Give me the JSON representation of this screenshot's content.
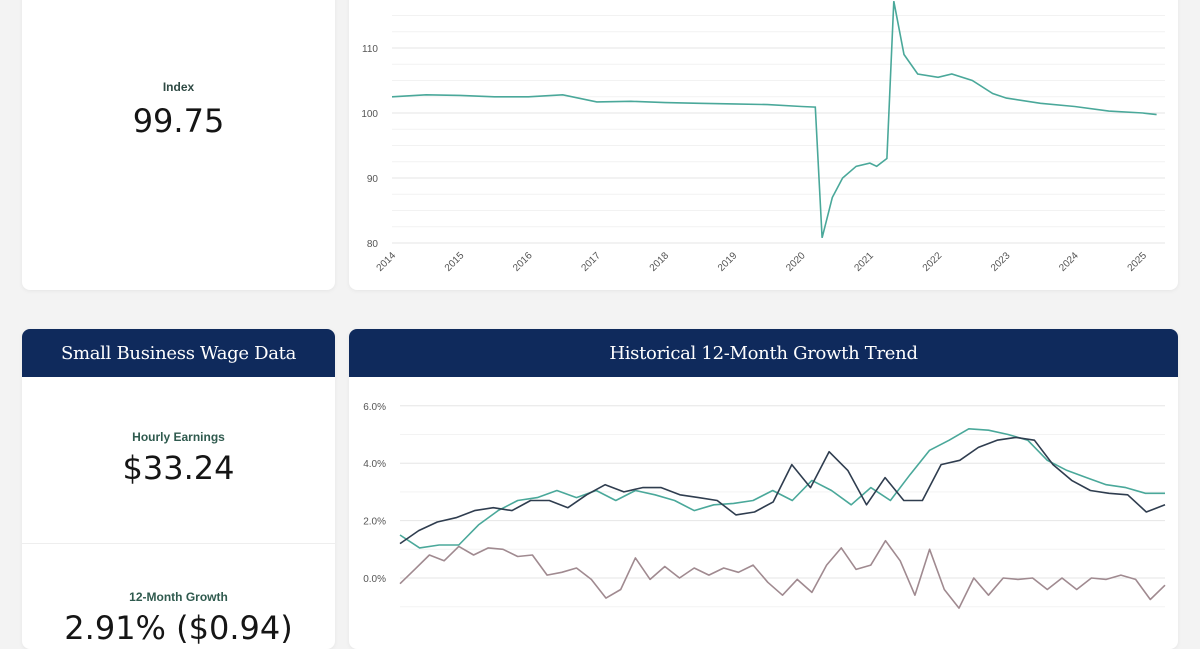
{
  "index_card": {
    "label": "Index",
    "value": "99.75"
  },
  "wage_card": {
    "title": "Small Business Wage Data",
    "hourly_label": "Hourly Earnings",
    "hourly_value": "$33.24",
    "growth_label": "12-Month Growth",
    "growth_value": "2.91% ($0.94)"
  },
  "trend_card": {
    "title": "Historical 12-Month Growth Trend"
  },
  "colors": {
    "navy_header": "#0f2a5c",
    "teal": "#4aa89a",
    "dark": "#2f3d4f",
    "mauve": "#a08a90"
  },
  "chart_data": [
    {
      "type": "line",
      "title": "",
      "xlabel": "",
      "ylabel": "",
      "ylim": [
        80,
        117
      ],
      "xlim": [
        2014,
        2025.25
      ],
      "grid": true,
      "yticks": [
        80,
        90,
        100,
        110
      ],
      "xticks": [
        "2014",
        "2015",
        "2016",
        "2017",
        "2018",
        "2019",
        "2020",
        "2021",
        "2022",
        "2023",
        "2024",
        "2025"
      ],
      "series": [
        {
          "color": "#4aa89a",
          "points": [
            [
              2014,
              102.5
            ],
            [
              2014.5,
              102.8
            ],
            [
              2015,
              102.7
            ],
            [
              2015.5,
              102.5
            ],
            [
              2016,
              102.5
            ],
            [
              2016.5,
              102.8
            ],
            [
              2017,
              101.7
            ],
            [
              2017.5,
              101.8
            ],
            [
              2018,
              101.6
            ],
            [
              2018.5,
              101.5
            ],
            [
              2019,
              101.4
            ],
            [
              2019.5,
              101.3
            ],
            [
              2020,
              101.0
            ],
            [
              2020.2,
              100.9
            ],
            [
              2020.3,
              80.8
            ],
            [
              2020.45,
              87
            ],
            [
              2020.6,
              90
            ],
            [
              2020.8,
              91.8
            ],
            [
              2021,
              92.3
            ],
            [
              2021.1,
              91.8
            ],
            [
              2021.25,
              93
            ],
            [
              2021.35,
              117.2
            ],
            [
              2021.5,
              109
            ],
            [
              2021.7,
              106
            ],
            [
              2022,
              105.5
            ],
            [
              2022.2,
              106
            ],
            [
              2022.5,
              105
            ],
            [
              2022.8,
              103
            ],
            [
              2023,
              102.3
            ],
            [
              2023.5,
              101.5
            ],
            [
              2024,
              101
            ],
            [
              2024.5,
              100.3
            ],
            [
              2025,
              100
            ],
            [
              2025.2,
              99.75
            ]
          ]
        }
      ]
    },
    {
      "type": "line",
      "title": "",
      "xlabel": "",
      "ylabel": "",
      "ylim": [
        -1.5,
        6.3
      ],
      "grid": true,
      "yticks": [
        "0.0%",
        "2.0%",
        "4.0%",
        "6.0%"
      ],
      "ytick_values": [
        0,
        2,
        4,
        6
      ],
      "series": [
        {
          "color": "#4aa89a",
          "values": [
            1.5,
            1.05,
            1.15,
            1.15,
            1.85,
            2.35,
            2.7,
            2.8,
            3.05,
            2.8,
            3.05,
            2.7,
            3.05,
            2.9,
            2.7,
            2.35,
            2.55,
            2.6,
            2.7,
            3.05,
            2.7,
            3.4,
            3.05,
            2.55,
            3.15,
            2.7,
            3.6,
            4.45,
            4.8,
            5.2,
            5.15,
            5.0,
            4.8,
            4.1,
            3.75,
            3.5,
            3.25,
            3.15,
            2.95,
            2.95
          ]
        },
        {
          "color": "#2f3d4f",
          "values": [
            1.2,
            1.65,
            1.95,
            2.1,
            2.35,
            2.45,
            2.35,
            2.7,
            2.7,
            2.45,
            2.9,
            3.25,
            3.0,
            3.15,
            3.15,
            2.9,
            2.8,
            2.7,
            2.2,
            2.3,
            2.65,
            3.95,
            3.15,
            4.4,
            3.75,
            2.55,
            3.5,
            2.7,
            2.7,
            3.95,
            4.1,
            4.55,
            4.8,
            4.9,
            4.8,
            3.95,
            3.4,
            3.05,
            2.95,
            2.9,
            2.3,
            2.55
          ]
        },
        {
          "color": "#a08a90",
          "values": [
            -0.2,
            0.3,
            0.8,
            0.6,
            1.1,
            0.8,
            1.05,
            1.0,
            0.75,
            0.8,
            0.1,
            0.2,
            0.35,
            -0.05,
            -0.7,
            -0.4,
            0.7,
            -0.05,
            0.4,
            0.0,
            0.35,
            0.1,
            0.35,
            0.2,
            0.45,
            -0.15,
            -0.6,
            -0.05,
            -0.5,
            0.45,
            1.05,
            0.3,
            0.45,
            1.3,
            0.6,
            -0.6,
            1.0,
            -0.4,
            -1.05,
            0.0,
            -0.6,
            0.0,
            -0.05,
            0.0,
            -0.4,
            0.0,
            -0.4,
            0.0,
            -0.05,
            0.1,
            -0.05,
            -0.75,
            -0.25
          ]
        }
      ]
    }
  ]
}
